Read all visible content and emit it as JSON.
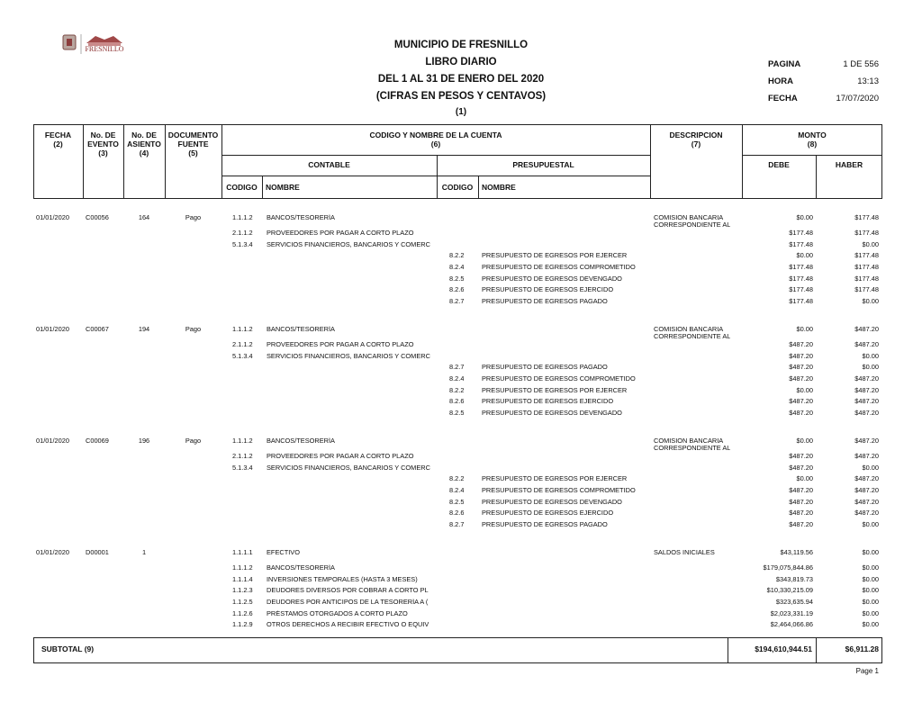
{
  "header": {
    "logo_text": "FRESNILLO",
    "title": "MUNICIPIO DE FRESNILLO",
    "subtitle": "LIBRO DIARIO",
    "period": "DEL 1 AL 31 DE ENERO DEL 2020",
    "units": "(CIFRAS EN PESOS Y CENTAVOS)",
    "number": "(1)"
  },
  "info": [
    {
      "label": "PAGINA",
      "value": "1 DE 556"
    },
    {
      "label": "HORA",
      "value": "13:13"
    },
    {
      "label": "FECHA",
      "value": "17/07/2020"
    }
  ],
  "columns": {
    "fecha": "FECHA\n(2)",
    "evento": "No. DE\nEVENTO\n(3)",
    "asiento": "No. DE\nASIENTO\n(4)",
    "documento": "DOCUMENTO\nFUENTE\n(5)",
    "cuenta": "CODIGO Y NOMBRE DE LA CUENTA\n(6)",
    "descripcion": "DESCRIPCION\n(7)",
    "monto": "MONTO\n(8)",
    "contable": "CONTABLE",
    "presupuestal": "PRESUPUESTAL",
    "debe": "DEBE",
    "haber": "HABER",
    "codigo_c": "CODIGO",
    "nombre_c": "NOMBRE",
    "codigo_p": "CODIGO",
    "nombre_p": "NOMBRE"
  },
  "entries": [
    {
      "fecha": "01/01/2020",
      "evento": "C00056",
      "asiento": "164",
      "documento": "Pago",
      "descripcion": "COMISION BANCARIA\nCORRESPONDIENTE AL",
      "lines": [
        {
          "cc": "1.1.1.2",
          "cn": "BANCOS/TESORERÍA",
          "debe": "$0.00",
          "haber": "$177.48"
        },
        {
          "cc": "2.1.1.2",
          "cn": "PROVEEDORES POR PAGAR A CORTO PLAZO",
          "debe": "$177.48",
          "haber": "$177.48"
        },
        {
          "cc": "5.1.3.4",
          "cn": "SERVICIOS FINANCIEROS, BANCARIOS Y COMERC",
          "debe": "$177.48",
          "haber": "$0.00"
        },
        {
          "pc": "8.2.2",
          "pn": "PRESUPUESTO DE EGRESOS POR EJERCER",
          "debe": "$0.00",
          "haber": "$177.48"
        },
        {
          "pc": "8.2.4",
          "pn": "PRESUPUESTO DE EGRESOS COMPROMETIDO",
          "debe": "$177.48",
          "haber": "$177.48"
        },
        {
          "pc": "8.2.5",
          "pn": "PRESUPUESTO DE EGRESOS DEVENGADO",
          "debe": "$177.48",
          "haber": "$177.48"
        },
        {
          "pc": "8.2.6",
          "pn": "PRESUPUESTO DE EGRESOS EJERCIDO",
          "debe": "$177.48",
          "haber": "$177.48"
        },
        {
          "pc": "8.2.7",
          "pn": "PRESUPUESTO DE EGRESOS PAGADO",
          "debe": "$177.48",
          "haber": "$0.00"
        }
      ]
    },
    {
      "fecha": "01/01/2020",
      "evento": "C00067",
      "asiento": "194",
      "documento": "Pago",
      "descripcion": "COMISION BANCARIA\nCORRESPONDIENTE AL",
      "lines": [
        {
          "cc": "1.1.1.2",
          "cn": "BANCOS/TESORERÍA",
          "debe": "$0.00",
          "haber": "$487.20"
        },
        {
          "cc": "2.1.1.2",
          "cn": "PROVEEDORES POR PAGAR A CORTO PLAZO",
          "debe": "$487.20",
          "haber": "$487.20"
        },
        {
          "cc": "5.1.3.4",
          "cn": "SERVICIOS FINANCIEROS, BANCARIOS Y COMERC",
          "debe": "$487.20",
          "haber": "$0.00"
        },
        {
          "pc": "8.2.7",
          "pn": "PRESUPUESTO DE EGRESOS PAGADO",
          "debe": "$487.20",
          "haber": "$0.00"
        },
        {
          "pc": "8.2.4",
          "pn": "PRESUPUESTO DE EGRESOS COMPROMETIDO",
          "debe": "$487.20",
          "haber": "$487.20"
        },
        {
          "pc": "8.2.2",
          "pn": "PRESUPUESTO DE EGRESOS POR EJERCER",
          "debe": "$0.00",
          "haber": "$487.20"
        },
        {
          "pc": "8.2.6",
          "pn": "PRESUPUESTO DE EGRESOS EJERCIDO",
          "debe": "$487.20",
          "haber": "$487.20"
        },
        {
          "pc": "8.2.5",
          "pn": "PRESUPUESTO DE EGRESOS DEVENGADO",
          "debe": "$487.20",
          "haber": "$487.20"
        }
      ]
    },
    {
      "fecha": "01/01/2020",
      "evento": "C00069",
      "asiento": "196",
      "documento": "Pago",
      "descripcion": "COMISION BANCARIA\nCORRESPONDIENTE AL",
      "lines": [
        {
          "cc": "1.1.1.2",
          "cn": "BANCOS/TESORERÍA",
          "debe": "$0.00",
          "haber": "$487.20"
        },
        {
          "cc": "2.1.1.2",
          "cn": "PROVEEDORES POR PAGAR A CORTO PLAZO",
          "debe": "$487.20",
          "haber": "$487.20"
        },
        {
          "cc": "5.1.3.4",
          "cn": "SERVICIOS FINANCIEROS, BANCARIOS Y COMERC",
          "debe": "$487.20",
          "haber": "$0.00"
        },
        {
          "pc": "8.2.2",
          "pn": "PRESUPUESTO DE EGRESOS POR EJERCER",
          "debe": "$0.00",
          "haber": "$487.20"
        },
        {
          "pc": "8.2.4",
          "pn": "PRESUPUESTO DE EGRESOS COMPROMETIDO",
          "debe": "$487.20",
          "haber": "$487.20"
        },
        {
          "pc": "8.2.5",
          "pn": "PRESUPUESTO DE EGRESOS DEVENGADO",
          "debe": "$487.20",
          "haber": "$487.20"
        },
        {
          "pc": "8.2.6",
          "pn": "PRESUPUESTO DE EGRESOS EJERCIDO",
          "debe": "$487.20",
          "haber": "$487.20"
        },
        {
          "pc": "8.2.7",
          "pn": "PRESUPUESTO DE EGRESOS PAGADO",
          "debe": "$487.20",
          "haber": "$0.00"
        }
      ]
    },
    {
      "fecha": "01/01/2020",
      "evento": "D00001",
      "asiento": "1",
      "descripcion": "SALDOS INICIALES",
      "lines": [
        {
          "cc": "1.1.1.1",
          "cn": "EFECTIVO",
          "debe": "$43,119.56",
          "haber": "$0.00"
        },
        {
          "cc": "1.1.1.2",
          "cn": "BANCOS/TESORERÍA",
          "debe": "$179,075,844.86",
          "haber": "$0.00"
        },
        {
          "cc": "1.1.1.4",
          "cn": "INVERSIONES TEMPORALES (HASTA 3 MESES)",
          "debe": "$343,819.73",
          "haber": "$0.00"
        },
        {
          "cc": "1.1.2.3",
          "cn": "DEUDORES DIVERSOS POR COBRAR A CORTO PL",
          "debe": "$10,330,215.09",
          "haber": "$0.00"
        },
        {
          "cc": "1.1.2.5",
          "cn": "DEUDORES POR ANTICIPOS DE LA TESORERÍA A (",
          "debe": "$323,635.94",
          "haber": "$0.00"
        },
        {
          "cc": "1.1.2.6",
          "cn": "PRÉSTAMOS OTORGADOS A CORTO PLAZO",
          "debe": "$2,023,331.19",
          "haber": "$0.00"
        },
        {
          "cc": "1.1.2.9",
          "cn": "OTROS DERECHOS A RECIBIR EFECTIVO O EQUIV",
          "debe": "$2,464,066.86",
          "haber": "$0.00"
        }
      ]
    }
  ],
  "subtotal": {
    "label": "SUBTOTAL (9)",
    "debe": "$194,610,944.51",
    "haber": "$6,911.28"
  },
  "footer": {
    "page": "Page 1"
  }
}
